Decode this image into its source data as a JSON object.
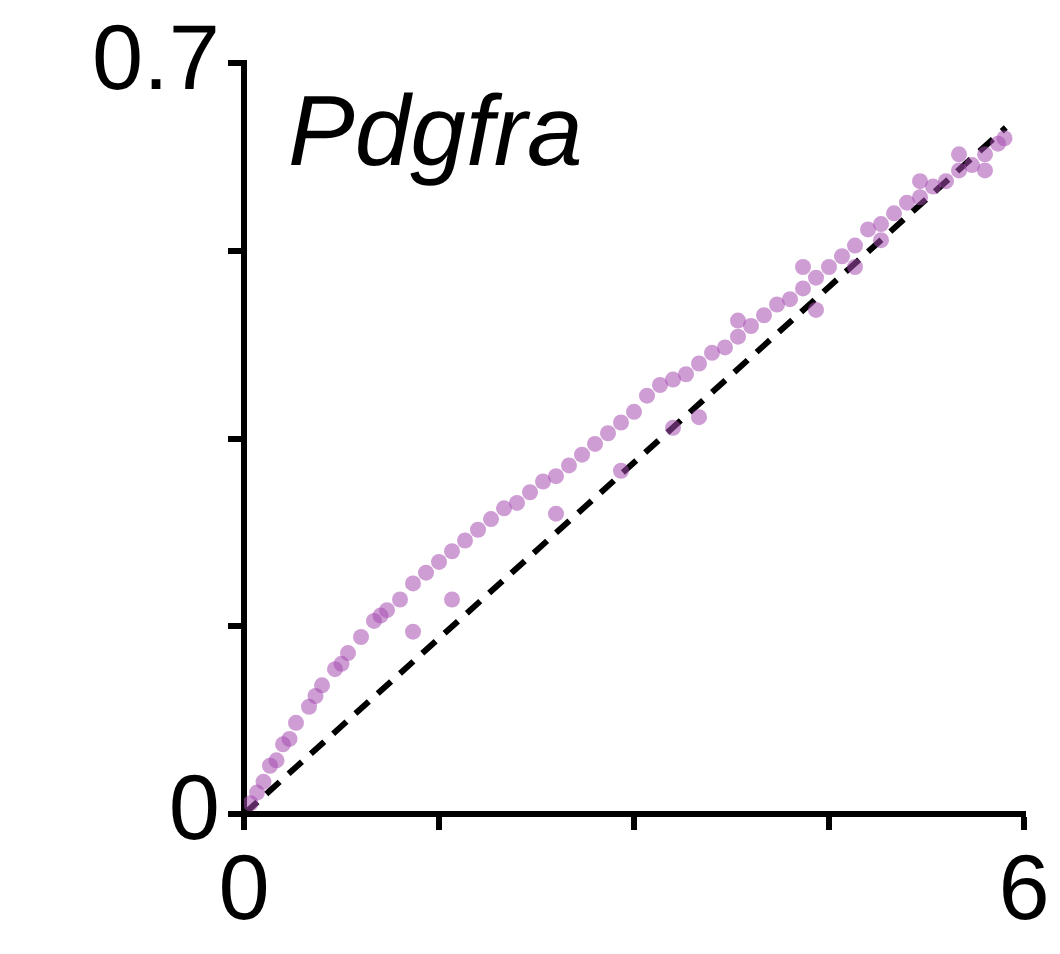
{
  "chart_data": {
    "type": "scatter",
    "title": "Pdgfra",
    "xlim": [
      0,
      6
    ],
    "ylim": [
      0,
      0.7
    ],
    "xticks": [
      0,
      {
        "value": 1.5,
        "label": null
      },
      {
        "value": 3,
        "label": null
      },
      {
        "value": 4.5,
        "label": null
      },
      6
    ],
    "yticks": [
      0,
      {
        "value": 0.175,
        "label": null
      },
      {
        "value": 0.35,
        "label": null
      },
      {
        "value": 0.525,
        "label": null
      },
      0.7
    ],
    "grid": false,
    "legend": false,
    "series": [
      {
        "color": "#a64cb0",
        "marker": "circle",
        "x": [
          0.05,
          0.1,
          0.15,
          0.2,
          0.25,
          0.3,
          0.35,
          0.4,
          0.5,
          0.55,
          0.6,
          0.7,
          0.75,
          0.8,
          0.9,
          1.0,
          1.05,
          1.1,
          1.2,
          1.3,
          1.4,
          1.5,
          1.6,
          1.7,
          1.8,
          1.9,
          2.0,
          2.1,
          2.2,
          2.3,
          2.4,
          2.5,
          2.6,
          2.7,
          2.8,
          2.9,
          3.0,
          3.1,
          3.2,
          3.3,
          3.4,
          3.5,
          3.6,
          3.7,
          3.8,
          3.9,
          4.0,
          4.1,
          4.2,
          4.3,
          4.4,
          4.5,
          4.6,
          4.7,
          4.8,
          4.9,
          5.0,
          5.1,
          5.2,
          5.3,
          5.4,
          5.5,
          5.6,
          5.7,
          5.8,
          5.85,
          1.3,
          1.6,
          2.4,
          2.9,
          3.3,
          3.5,
          4.4,
          4.7,
          3.8,
          4.3,
          5.2,
          5.5,
          4.9,
          5.7
        ],
        "values": [
          0.01,
          0.02,
          0.03,
          0.045,
          0.05,
          0.065,
          0.07,
          0.085,
          0.1,
          0.11,
          0.12,
          0.135,
          0.14,
          0.15,
          0.165,
          0.18,
          0.185,
          0.19,
          0.2,
          0.215,
          0.225,
          0.235,
          0.245,
          0.255,
          0.265,
          0.275,
          0.285,
          0.29,
          0.3,
          0.31,
          0.315,
          0.325,
          0.335,
          0.345,
          0.355,
          0.365,
          0.375,
          0.39,
          0.4,
          0.405,
          0.41,
          0.42,
          0.43,
          0.435,
          0.445,
          0.455,
          0.465,
          0.475,
          0.48,
          0.49,
          0.5,
          0.51,
          0.52,
          0.53,
          0.545,
          0.55,
          0.56,
          0.57,
          0.575,
          0.585,
          0.59,
          0.6,
          0.605,
          0.615,
          0.625,
          0.63,
          0.17,
          0.2,
          0.28,
          0.32,
          0.36,
          0.37,
          0.47,
          0.51,
          0.46,
          0.51,
          0.59,
          0.615,
          0.535,
          0.6
        ]
      },
      {
        "type": "line",
        "color": "#000000",
        "marker": "none",
        "line_style": "dashed",
        "x": [
          0,
          5.86
        ],
        "values": [
          0,
          0.64
        ]
      }
    ]
  }
}
